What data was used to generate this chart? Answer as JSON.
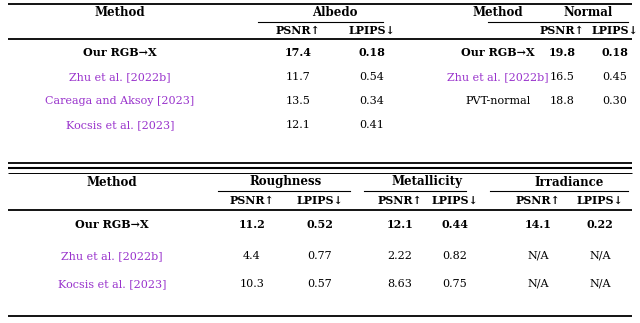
{
  "figsize": [
    6.4,
    3.23
  ],
  "dpi": 100,
  "background_color": "#ffffff",
  "purple_color": "#9933CC",
  "black_color": "#000000",
  "top_table": {
    "rows": [
      {
        "method": "Our RGB→X",
        "albedo_psnr": "17.4",
        "albedo_lpips": "0.18",
        "method2": "Our RGB→X",
        "normal_psnr": "19.8",
        "normal_lpips": "0.18",
        "bold": true,
        "color": "black",
        "m2_color": "black"
      },
      {
        "method": "Zhu et al. [2022b]",
        "albedo_psnr": "11.7",
        "albedo_lpips": "0.54",
        "method2": "Zhu et al. [2022b]",
        "normal_psnr": "16.5",
        "normal_lpips": "0.45",
        "bold": false,
        "color": "purple",
        "m2_color": "purple"
      },
      {
        "method": "Careaga and Aksoy [2023]",
        "albedo_psnr": "13.5",
        "albedo_lpips": "0.34",
        "method2": "PVT-normal",
        "normal_psnr": "18.8",
        "normal_lpips": "0.30",
        "bold": false,
        "color": "purple",
        "m2_color": "black"
      },
      {
        "method": "Kocsis et al. [2023]",
        "albedo_psnr": "12.1",
        "albedo_lpips": "0.41",
        "method2": "",
        "normal_psnr": "",
        "normal_lpips": "",
        "bold": false,
        "color": "purple",
        "m2_color": "black"
      }
    ]
  },
  "bottom_table": {
    "rows": [
      {
        "method": "Our RGB→X",
        "rough_psnr": "11.2",
        "rough_lpips": "0.52",
        "metal_psnr": "12.1",
        "metal_lpips": "0.44",
        "irrad_psnr": "14.1",
        "irrad_lpips": "0.22",
        "bold": true,
        "color": "black"
      },
      {
        "method": "Zhu et al. [2022b]",
        "rough_psnr": "4.4",
        "rough_lpips": "0.77",
        "metal_psnr": "2.22",
        "metal_lpips": "0.82",
        "irrad_psnr": "N/A",
        "irrad_lpips": "N/A",
        "bold": false,
        "color": "purple"
      },
      {
        "method": "Kocsis et al. [2023]",
        "rough_psnr": "10.3",
        "rough_lpips": "0.57",
        "metal_psnr": "8.63",
        "metal_lpips": "0.75",
        "irrad_psnr": "N/A",
        "irrad_lpips": "N/A",
        "bold": false,
        "color": "purple"
      }
    ]
  }
}
